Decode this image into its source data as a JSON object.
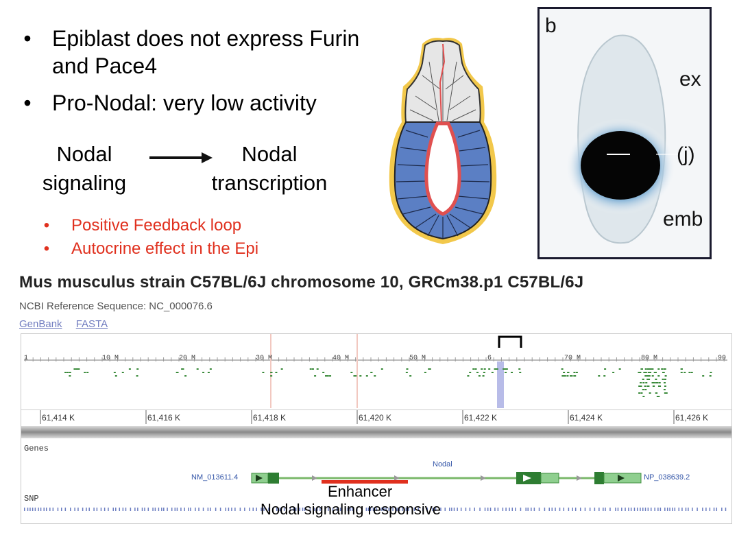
{
  "bullets": [
    "Epiblast does not express Furin and Pace4",
    "Pro-Nodal: very low activity"
  ],
  "bullet_symbol": "•",
  "arrow_diagram": {
    "from_line1": "Nodal",
    "from_line2": "signaling",
    "to_line1": "Nodal",
    "to_line2": "transcription"
  },
  "red_bullets": [
    "Positive Feedback loop",
    "Autocrine effect in the Epi"
  ],
  "panel_b": {
    "letter": "b",
    "ex": "ex",
    "j": "(j)",
    "emb": "emb"
  },
  "genome": {
    "title": "Mus musculus strain C57BL/6J chromosome 10, GRCm38.p1 C57BL/6J",
    "ref_seq": "NCBI Reference Sequence: NC_000076.6",
    "links": [
      "GenBank",
      "FASTA"
    ],
    "overview_ticks": [
      "1",
      "10 M",
      "20 M",
      "30 M",
      "40 M",
      "50 M",
      "6",
      "70 M",
      "80 M",
      "90"
    ],
    "detail_ticks": [
      "61,414 K",
      "61,416 K",
      "61,418 K",
      "61,420 K",
      "61,422 K",
      "61,424 K",
      "61,426 K"
    ],
    "genes_label": "Genes",
    "snp_label": "SNP",
    "gene_name": "Nodal",
    "transcript_left": "NM_013611.4",
    "protein_right": "NP_038639.2",
    "enhancer_label": "Enhancer",
    "enhancer_sub": "Nodal signaling responsive"
  },
  "colors": {
    "red_text": "#e0301e",
    "epiblast_blue": "#5b7fc4",
    "gene_green": "#3f8f3f",
    "enhancer_red": "#e0301e"
  }
}
